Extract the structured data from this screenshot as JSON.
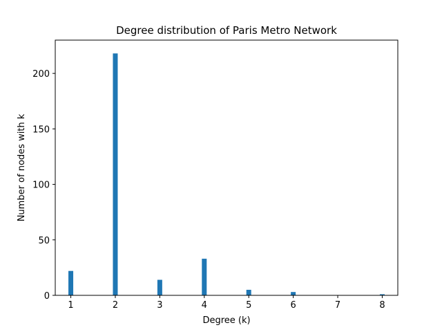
{
  "chart_data": {
    "type": "bar",
    "title": "Degree distribution of Paris Metro Network",
    "xlabel": "Degree (k)",
    "ylabel": "Number of nodes with k",
    "x": [
      1,
      2,
      3,
      4,
      5,
      6,
      7,
      8
    ],
    "values": [
      22,
      218,
      14,
      33,
      5,
      3,
      0,
      1
    ],
    "xticks": [
      "1",
      "2",
      "3",
      "4",
      "5",
      "6",
      "7",
      "8"
    ],
    "yticks": [
      "0",
      "50",
      "100",
      "150",
      "200"
    ],
    "xlim": [
      0.65,
      8.35
    ],
    "ylim": [
      0,
      230
    ],
    "bar_color": "#1f77b4",
    "grid": false,
    "legend": "none"
  }
}
